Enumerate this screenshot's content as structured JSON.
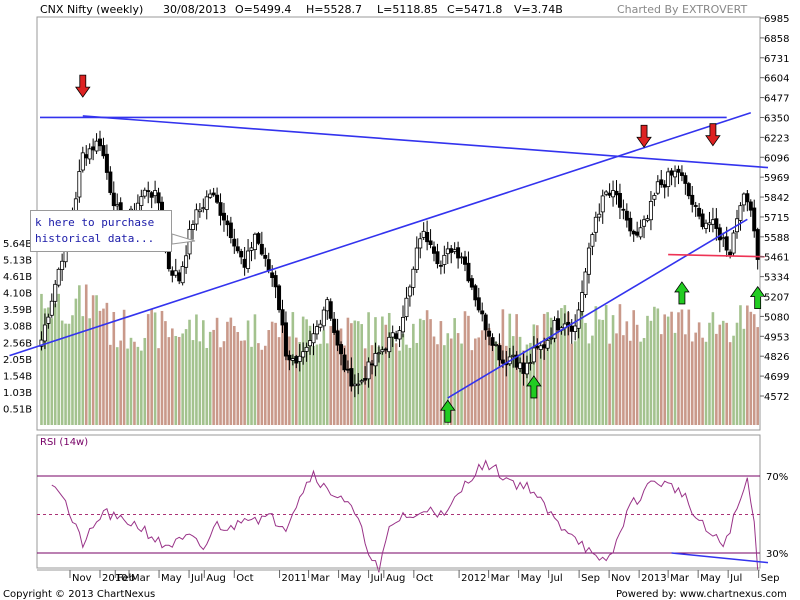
{
  "header": {
    "title": "CNX Nifty (weekly)",
    "date": "30/08/2013",
    "open": "O=5499.4",
    "high": "H=5528.7",
    "low": "L=5118.85",
    "close": "C=5471.8",
    "volume": "V=3.74B",
    "charted_by": "Charted By EXTROVERT"
  },
  "footer": {
    "copyright": "Copyright © 2013 ChartNexus",
    "powered_by": "Powered by: www.chartnexus.com"
  },
  "callout": {
    "line1": "k here to purchase",
    "line2": "historical data..."
  },
  "colors": {
    "up_volume": "#a3c28e",
    "down_volume": "#c9998a",
    "trendline": "#3333ee",
    "support": "#ee3355",
    "rsi_line": "#993388",
    "rsi_bands": "#770066",
    "arrow_up": "#22cc22",
    "arrow_down": "#dd2222"
  },
  "chart_data": [
    {
      "type": "candlestick",
      "title": "CNX Nifty (weekly)",
      "ylim": [
        4500,
        6985
      ],
      "price_ticks": [
        "6985",
        "6858",
        "6731",
        "6604",
        "6477",
        "6350",
        "6223",
        "6096",
        "5969",
        "5842",
        "5715",
        "5588",
        "5461",
        "5334",
        "5207",
        "5080",
        "4953",
        "4826",
        "4699",
        "4572"
      ],
      "volume_ticks": [
        "5.64B",
        "5.13B",
        "4.61B",
        "4.10B",
        "3.59B",
        "3.08B",
        "2.56B",
        "2.05B",
        "1.54B",
        "1.03B",
        "0.51B"
      ],
      "x_ticks": [
        "Nov",
        "2010",
        "Feb",
        "Mar",
        "May",
        "Jul",
        "Aug",
        "Oct",
        "2011",
        "Mar",
        "May",
        "Jul",
        "Aug",
        "Oct",
        "2012",
        "Mar",
        "May",
        "Jul",
        "Sep",
        "Nov",
        "2013",
        "Mar",
        "May",
        "Jul",
        "Sep"
      ],
      "close_anchors": [
        {
          "date": "2009-09-04",
          "close": 4930
        },
        {
          "date": "2009-09-25",
          "close": 5200
        },
        {
          "date": "2009-10-23",
          "close": 5560
        },
        {
          "date": "2009-11-13",
          "close": 5850
        },
        {
          "date": "2009-11-27",
          "close": 6110
        },
        {
          "date": "2009-12-11",
          "close": 6150
        },
        {
          "date": "2010-01-01",
          "close": 6200
        },
        {
          "date": "2010-01-22",
          "close": 5900
        },
        {
          "date": "2010-02-19",
          "close": 5610
        },
        {
          "date": "2010-03-12",
          "close": 5780
        },
        {
          "date": "2010-04-09",
          "close": 5900
        },
        {
          "date": "2010-04-30",
          "close": 5810
        },
        {
          "date": "2010-05-21",
          "close": 5400
        },
        {
          "date": "2010-06-11",
          "close": 5320
        },
        {
          "date": "2010-07-09",
          "close": 5690
        },
        {
          "date": "2010-08-13",
          "close": 5870
        },
        {
          "date": "2010-09-10",
          "close": 5720
        },
        {
          "date": "2010-10-01",
          "close": 5570
        },
        {
          "date": "2010-10-22",
          "close": 5380
        },
        {
          "date": "2010-11-12",
          "close": 5610
        },
        {
          "date": "2010-12-03",
          "close": 5420
        },
        {
          "date": "2010-12-24",
          "close": 5290
        },
        {
          "date": "2011-01-14",
          "close": 4860
        },
        {
          "date": "2011-02-04",
          "close": 4750
        },
        {
          "date": "2011-02-25",
          "close": 4850
        },
        {
          "date": "2011-03-18",
          "close": 5010
        },
        {
          "date": "2011-04-08",
          "close": 5200
        },
        {
          "date": "2011-04-29",
          "close": 4880
        },
        {
          "date": "2011-05-20",
          "close": 4700
        },
        {
          "date": "2011-06-10",
          "close": 4640
        },
        {
          "date": "2011-07-08",
          "close": 4780
        },
        {
          "date": "2011-08-05",
          "close": 4900
        },
        {
          "date": "2011-08-26",
          "close": 4960
        },
        {
          "date": "2011-09-23",
          "close": 5250
        },
        {
          "date": "2011-10-14",
          "close": 5600
        },
        {
          "date": "2011-11-04",
          "close": 5580
        },
        {
          "date": "2011-11-25",
          "close": 5400
        },
        {
          "date": "2011-12-16",
          "close": 5520
        },
        {
          "date": "2012-01-06",
          "close": 5480
        },
        {
          "date": "2012-01-27",
          "close": 5280
        },
        {
          "date": "2012-02-17",
          "close": 5070
        },
        {
          "date": "2012-03-09",
          "close": 4940
        },
        {
          "date": "2012-03-30",
          "close": 4790
        },
        {
          "date": "2012-04-20",
          "close": 4840
        },
        {
          "date": "2012-05-11",
          "close": 4720
        },
        {
          "date": "2012-06-01",
          "close": 4840
        },
        {
          "date": "2012-06-22",
          "close": 4900
        },
        {
          "date": "2012-07-13",
          "close": 5020
        },
        {
          "date": "2012-08-03",
          "close": 5060
        },
        {
          "date": "2012-08-24",
          "close": 5010
        },
        {
          "date": "2012-09-14",
          "close": 5360
        },
        {
          "date": "2012-10-05",
          "close": 5720
        },
        {
          "date": "2012-10-26",
          "close": 5860
        },
        {
          "date": "2012-11-16",
          "close": 5840
        },
        {
          "date": "2012-12-07",
          "close": 5660
        },
        {
          "date": "2012-12-28",
          "close": 5580
        },
        {
          "date": "2013-01-18",
          "close": 5700
        },
        {
          "date": "2013-02-08",
          "close": 5910
        },
        {
          "date": "2013-03-01",
          "close": 5960
        },
        {
          "date": "2013-03-22",
          "close": 6010
        },
        {
          "date": "2013-04-12",
          "close": 5850
        },
        {
          "date": "2013-05-03",
          "close": 5700
        },
        {
          "date": "2013-05-24",
          "close": 5680
        },
        {
          "date": "2013-06-14",
          "close": 5600
        },
        {
          "date": "2013-07-05",
          "close": 5500
        },
        {
          "date": "2013-07-26",
          "close": 5830
        },
        {
          "date": "2013-08-16",
          "close": 5800
        },
        {
          "date": "2013-08-30",
          "close": 5471.8
        }
      ],
      "horizontal_lines": [
        6350,
        5461
      ],
      "arrows": {
        "down": [
          {
            "date": "2009-11-27"
          },
          {
            "date": "2013-01-11"
          },
          {
            "date": "2013-05-31"
          }
        ],
        "up": [
          {
            "date": "2011-12-09"
          },
          {
            "date": "2012-06-01"
          },
          {
            "date": "2013-03-29"
          },
          {
            "date": "2013-08-30"
          }
        ]
      }
    },
    {
      "type": "line",
      "title": "RSI (14w)",
      "ylim": [
        0,
        100
      ],
      "levels": [
        70,
        50,
        30
      ],
      "level_labels": [
        "70%",
        "30%"
      ],
      "anchors": [
        {
          "date": "2009-09-25",
          "value": 68
        },
        {
          "date": "2009-10-16",
          "value": 61
        },
        {
          "date": "2009-11-06",
          "value": 46
        },
        {
          "date": "2009-11-27",
          "value": 35
        },
        {
          "date": "2009-12-18",
          "value": 42
        },
        {
          "date": "2010-01-08",
          "value": 52
        },
        {
          "date": "2010-02-05",
          "value": 47
        },
        {
          "date": "2010-03-05",
          "value": 46
        },
        {
          "date": "2010-04-02",
          "value": 42
        },
        {
          "date": "2010-05-07",
          "value": 34
        },
        {
          "date": "2010-06-04",
          "value": 35
        },
        {
          "date": "2010-07-02",
          "value": 38
        },
        {
          "date": "2010-07-30",
          "value": 32
        },
        {
          "date": "2010-08-27",
          "value": 45
        },
        {
          "date": "2010-09-24",
          "value": 42
        },
        {
          "date": "2010-10-22",
          "value": 50
        },
        {
          "date": "2010-11-19",
          "value": 48
        },
        {
          "date": "2010-12-17",
          "value": 48
        },
        {
          "date": "2011-01-14",
          "value": 44
        },
        {
          "date": "2011-02-11",
          "value": 60
        },
        {
          "date": "2011-03-11",
          "value": 72
        },
        {
          "date": "2011-04-08",
          "value": 62
        },
        {
          "date": "2011-05-06",
          "value": 60
        },
        {
          "date": "2011-06-03",
          "value": 50
        },
        {
          "date": "2011-07-01",
          "value": 32
        },
        {
          "date": "2011-07-22",
          "value": 20
        },
        {
          "date": "2011-08-12",
          "value": 42
        },
        {
          "date": "2011-09-09",
          "value": 50
        },
        {
          "date": "2011-10-07",
          "value": 48
        },
        {
          "date": "2011-11-04",
          "value": 55
        },
        {
          "date": "2011-12-02",
          "value": 48
        },
        {
          "date": "2012-01-06",
          "value": 63
        },
        {
          "date": "2012-02-03",
          "value": 73
        },
        {
          "date": "2012-03-02",
          "value": 76
        },
        {
          "date": "2012-03-30",
          "value": 70
        },
        {
          "date": "2012-04-27",
          "value": 66
        },
        {
          "date": "2012-05-25",
          "value": 64
        },
        {
          "date": "2012-06-22",
          "value": 54
        },
        {
          "date": "2012-07-20",
          "value": 45
        },
        {
          "date": "2012-08-17",
          "value": 41
        },
        {
          "date": "2012-09-14",
          "value": 33
        },
        {
          "date": "2012-10-12",
          "value": 24
        },
        {
          "date": "2012-11-09",
          "value": 30
        },
        {
          "date": "2012-12-07",
          "value": 52
        },
        {
          "date": "2013-01-04",
          "value": 60
        },
        {
          "date": "2013-02-01",
          "value": 68
        },
        {
          "date": "2013-03-01",
          "value": 65
        },
        {
          "date": "2013-03-29",
          "value": 62
        },
        {
          "date": "2013-04-26",
          "value": 48
        },
        {
          "date": "2013-05-24",
          "value": 40
        },
        {
          "date": "2013-06-21",
          "value": 34
        },
        {
          "date": "2013-07-19",
          "value": 52
        },
        {
          "date": "2013-08-09",
          "value": 68
        },
        {
          "date": "2013-08-23",
          "value": 45
        },
        {
          "date": "2013-08-30",
          "value": 24
        }
      ]
    }
  ]
}
